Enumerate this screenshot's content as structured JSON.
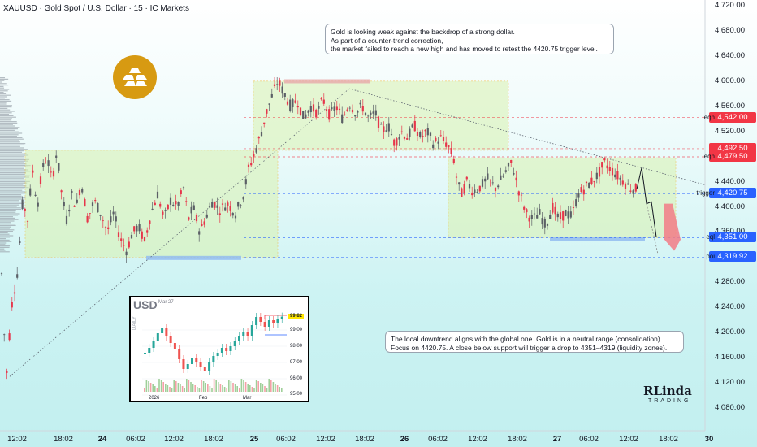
{
  "header": {
    "symbol_line": "XAUUSD · Gold Spot / U.S. Dollar · 15 · IC Markets"
  },
  "chart_data": {
    "type": "candlestick",
    "symbol": "XAUUSD",
    "timeframe": "15",
    "y_axis": {
      "ylim": [
        4050,
        4740
      ],
      "ticks": [
        "4,720.00",
        "4,680.00",
        "4,640.00",
        "4,600.00",
        "4,560.00",
        "4,520.00",
        "4,480.00",
        "4,440.00",
        "4,400.00",
        "4,360.00",
        "4,320.00",
        "4,280.00",
        "4,240.00",
        "4,200.00",
        "4,160.00",
        "4,120.00",
        "4,080.00"
      ]
    },
    "x_axis": {
      "ticks": [
        "12:02",
        "18:02",
        "24",
        "06:02",
        "12:02",
        "18:02",
        "25",
        "06:02",
        "12:02",
        "18:02",
        "26",
        "06:02",
        "12:02",
        "18:02",
        "27",
        "06:02",
        "12:02",
        "18:02",
        "30"
      ]
    },
    "price_path": [
      [
        0,
        4380
      ],
      [
        3,
        4250
      ],
      [
        8,
        4130
      ],
      [
        14,
        4240
      ],
      [
        22,
        4300
      ],
      [
        28,
        4410
      ],
      [
        34,
        4380
      ],
      [
        40,
        4460
      ],
      [
        46,
        4400
      ],
      [
        52,
        4460
      ],
      [
        58,
        4480
      ],
      [
        64,
        4440
      ],
      [
        70,
        4490
      ],
      [
        76,
        4420
      ],
      [
        82,
        4380
      ],
      [
        88,
        4420
      ],
      [
        94,
        4400
      ],
      [
        100,
        4440
      ],
      [
        108,
        4380
      ],
      [
        116,
        4410
      ],
      [
        124,
        4390
      ],
      [
        132,
        4360
      ],
      [
        140,
        4390
      ],
      [
        148,
        4350
      ],
      [
        156,
        4330
      ],
      [
        162,
        4355
      ],
      [
        170,
        4370
      ],
      [
        178,
        4345
      ],
      [
        186,
        4390
      ],
      [
        194,
        4420
      ],
      [
        202,
        4380
      ],
      [
        210,
        4410
      ],
      [
        218,
        4400
      ],
      [
        226,
        4430
      ],
      [
        232,
        4380
      ],
      [
        238,
        4400
      ],
      [
        246,
        4360
      ],
      [
        254,
        4385
      ],
      [
        262,
        4410
      ],
      [
        270,
        4395
      ],
      [
        280,
        4405
      ],
      [
        290,
        4390
      ],
      [
        300,
        4420
      ],
      [
        306,
        4460
      ],
      [
        312,
        4480
      ],
      [
        320,
        4510
      ],
      [
        328,
        4550
      ],
      [
        336,
        4580
      ],
      [
        342,
        4600
      ],
      [
        350,
        4580
      ],
      [
        358,
        4560
      ],
      [
        366,
        4570
      ],
      [
        374,
        4540
      ],
      [
        382,
        4560
      ],
      [
        390,
        4550
      ],
      [
        398,
        4570
      ],
      [
        406,
        4545
      ],
      [
        414,
        4560
      ],
      [
        422,
        4540
      ],
      [
        430,
        4565
      ],
      [
        438,
        4550
      ],
      [
        446,
        4560
      ],
      [
        454,
        4540
      ],
      [
        462,
        4550
      ],
      [
        470,
        4520
      ],
      [
        478,
        4530
      ],
      [
        486,
        4500
      ],
      [
        494,
        4520
      ],
      [
        502,
        4510
      ],
      [
        510,
        4530
      ],
      [
        518,
        4510
      ],
      [
        526,
        4520
      ],
      [
        534,
        4500
      ],
      [
        542,
        4510
      ],
      [
        550,
        4500
      ],
      [
        558,
        4480
      ],
      [
        563,
        4440
      ],
      [
        568,
        4420
      ],
      [
        575,
        4440
      ],
      [
        582,
        4425
      ],
      [
        590,
        4430
      ],
      [
        600,
        4445
      ],
      [
        610,
        4430
      ],
      [
        620,
        4450
      ],
      [
        630,
        4470
      ],
      [
        640,
        4420
      ],
      [
        648,
        4390
      ],
      [
        656,
        4380
      ],
      [
        664,
        4390
      ],
      [
        672,
        4370
      ],
      [
        680,
        4400
      ],
      [
        688,
        4380
      ],
      [
        696,
        4390
      ],
      [
        704,
        4385
      ],
      [
        712,
        4420
      ],
      [
        720,
        4430
      ],
      [
        728,
        4440
      ],
      [
        736,
        4450
      ],
      [
        744,
        4470
      ],
      [
        752,
        4460
      ],
      [
        760,
        4450
      ],
      [
        768,
        4440
      ],
      [
        776,
        4430
      ],
      [
        784,
        4428
      ]
    ],
    "zones": [
      {
        "name": "range-1",
        "top": 4490,
        "bottom": 4320
      },
      {
        "name": "range-2",
        "top": 4600,
        "bottom": 4490
      },
      {
        "name": "range-3",
        "top": 4478,
        "bottom": 4351
      }
    ],
    "levels": [
      {
        "label": "eqh",
        "price": 4542.0,
        "display": "4,542.00",
        "color": "#f23645"
      },
      {
        "label": "",
        "price": 4492.5,
        "display": "4,492.50",
        "color": "#f23645"
      },
      {
        "label": "eqh",
        "price": 4479.5,
        "display": "4,479.50",
        "color": "#f23645"
      },
      {
        "label": "trigger",
        "price": 4420.75,
        "display": "4,420.75",
        "color": "#2962ff"
      },
      {
        "label": "eql",
        "price": 4351.0,
        "display": "4,351.00",
        "color": "#2962ff"
      },
      {
        "label": "poi",
        "price": 4319.92,
        "display": "4,319.92",
        "color": "#2962ff"
      }
    ]
  },
  "callouts": {
    "top": {
      "lines": [
        "Gold is looking weak against the backdrop of a strong dollar.",
        "As part of a counter-trend correction,",
        "the market failed to reach a new high and has moved to retest the 4420.75 trigger level."
      ]
    },
    "bottom": {
      "lines": [
        "The local downtrend aligns with the global one. Gold is in a neutral range (consolidation).",
        "Focus on 4420.75. A close below support will trigger a drop to 4351–4319 (liquidity zones)."
      ]
    }
  },
  "inset": {
    "title": "USD",
    "date": "Mar 27",
    "side_label": "DAILY",
    "price_tag": "99.82",
    "y_ticks": [
      "99.00",
      "98.00",
      "97.00",
      "96.00",
      "95.00"
    ],
    "x_ticks": [
      "2026",
      "Feb",
      "Mar"
    ],
    "series": [
      97.6,
      97.9,
      98.3,
      98.8,
      99.1,
      98.6,
      98.2,
      97.8,
      97.2,
      96.6,
      96.9,
      97.3,
      97.0,
      96.7,
      96.5,
      97.0,
      97.4,
      97.6,
      97.9,
      97.7,
      98.0,
      98.3,
      98.6,
      98.9,
      98.6,
      99.3,
      99.8,
      99.5,
      99.2,
      99.6,
      99.4,
      99.7,
      99.82
    ]
  },
  "branding": {
    "logo_text": "RLinda",
    "logo_sub": "TRADING"
  }
}
